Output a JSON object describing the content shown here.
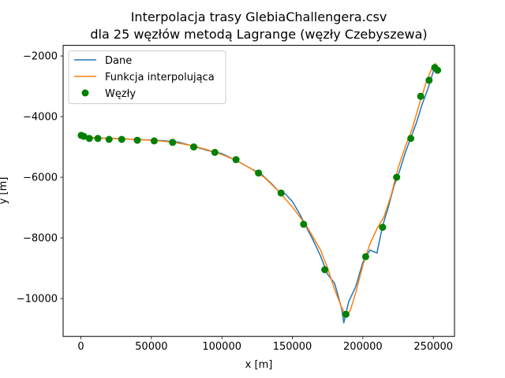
{
  "chart_data": {
    "type": "line",
    "title_line1": "Interpolacja trasy GlebiaChallengera.csv",
    "title_line2": "dla 25 węzłów metodą  Lagrange (węzły Czebyszewa)",
    "xlabel": "x [m]",
    "ylabel": "y [m]",
    "xlim": [
      -12600,
      265000
    ],
    "ylim": [
      -11250,
      -1650
    ],
    "xticks": [
      0,
      50000,
      100000,
      150000,
      200000,
      250000
    ],
    "xtick_labels": [
      "0",
      "50000",
      "100000",
      "150000",
      "200000",
      "250000"
    ],
    "yticks": [
      -10000,
      -8000,
      -6000,
      -4000,
      -2000
    ],
    "ytick_labels": [
      "−10000",
      "−8000",
      "−6000",
      "−4000",
      "−2000"
    ],
    "legend": {
      "position": "top-left",
      "entries": [
        "Dane",
        "Funkcja interpolująca",
        "Węzły"
      ]
    },
    "colors": {
      "data": "#1f77b4",
      "interpolation": "#ff7f0e",
      "nodes": "#008000"
    },
    "series": [
      {
        "name": "Dane",
        "x": [
          0,
          5000,
          10000,
          20000,
          30000,
          40000,
          50000,
          60000,
          70000,
          80000,
          90000,
          100000,
          110000,
          120000,
          128000,
          135000,
          140000,
          145000,
          150000,
          155000,
          160000,
          165000,
          170000,
          175000,
          180000,
          183000,
          185000,
          186500,
          188000,
          190000,
          192000,
          195000,
          200000,
          205000,
          210000,
          214000,
          218000,
          222000,
          226000,
          230000,
          234000,
          238000,
          242000,
          246000,
          250000,
          253000
        ],
        "y": [
          -4620,
          -4700,
          -4710,
          -4720,
          -4730,
          -4760,
          -4770,
          -4800,
          -4850,
          -4980,
          -5120,
          -5220,
          -5440,
          -5700,
          -5900,
          -6200,
          -6450,
          -6550,
          -6800,
          -7200,
          -7650,
          -8100,
          -8600,
          -9200,
          -9500,
          -10000,
          -10350,
          -10800,
          -10500,
          -10100,
          -9900,
          -9600,
          -8800,
          -8400,
          -8500,
          -7600,
          -7000,
          -6300,
          -5800,
          -5200,
          -4700,
          -4200,
          -3600,
          -3100,
          -2500,
          -2400
        ]
      },
      {
        "name": "Funkcja interpolująca",
        "x": [
          0,
          10000,
          20000,
          30000,
          40000,
          50000,
          60000,
          70000,
          80000,
          90000,
          100000,
          110000,
          120000,
          130000,
          140000,
          150000,
          160000,
          170000,
          175000,
          180000,
          185000,
          188000,
          191000,
          195000,
          200000,
          205000,
          210000,
          215000,
          220000,
          225000,
          230000,
          235000,
          240000,
          245000,
          249000,
          251500,
          253000
        ],
        "y": [
          -4620,
          -4700,
          -4720,
          -4730,
          -4750,
          -4780,
          -4820,
          -4880,
          -4970,
          -5100,
          -5250,
          -5440,
          -5700,
          -6000,
          -6450,
          -6980,
          -7600,
          -8400,
          -9000,
          -9700,
          -10300,
          -10550,
          -10400,
          -9800,
          -8900,
          -8200,
          -7700,
          -7300,
          -6600,
          -5700,
          -5000,
          -4400,
          -3600,
          -2850,
          -2400,
          -2250,
          -2550
        ]
      },
      {
        "name": "Węzły",
        "x": [
          200,
          2000,
          6000,
          12000,
          20000,
          29000,
          40000,
          52000,
          65000,
          80000,
          95000,
          110000,
          126000,
          142000,
          158000,
          173000,
          188000,
          202000,
          214000,
          224000,
          234000,
          241000,
          247000,
          251000,
          253000
        ],
        "y": [
          -4620,
          -4650,
          -4720,
          -4720,
          -4750,
          -4750,
          -4780,
          -4800,
          -4850,
          -5000,
          -5180,
          -5420,
          -5860,
          -6520,
          -7550,
          -9050,
          -10520,
          -8620,
          -7650,
          -6000,
          -4720,
          -3330,
          -2800,
          -2380,
          -2470
        ]
      }
    ]
  }
}
